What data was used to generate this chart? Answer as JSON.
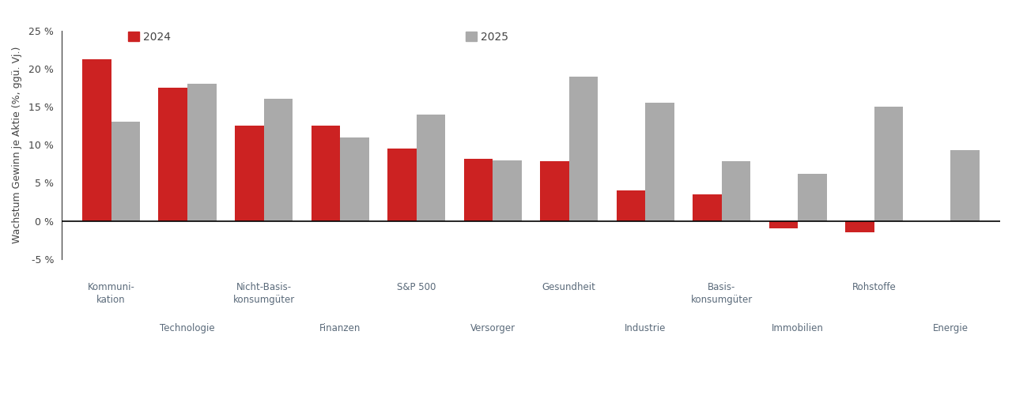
{
  "labels_top": [
    "Kommuni-\nkation",
    "",
    "Nicht-Basis-\nkonsumgüter",
    "",
    "S&P 500",
    "",
    "Gesundheit",
    "",
    "Basis-\nkonsumgüter",
    "",
    "Rohstoffe",
    ""
  ],
  "labels_bottom": [
    "",
    "Technologie",
    "",
    "Finanzen",
    "",
    "Versorger",
    "",
    "Industrie",
    "",
    "Immobilien",
    "",
    "Energie"
  ],
  "values_2024": [
    21.2,
    17.5,
    12.5,
    12.5,
    9.5,
    8.2,
    7.8,
    4.0,
    3.5,
    -1.0,
    -1.5,
    0.0
  ],
  "values_2025": [
    13.0,
    18.0,
    16.0,
    11.0,
    14.0,
    8.0,
    19.0,
    15.5,
    7.8,
    6.2,
    15.0,
    9.3
  ],
  "color_2024": "#cc2222",
  "color_2025": "#aaaaaa",
  "ylabel": "Wachstum Gewinn je Aktie (%, ggü. Vj.)",
  "ylim": [
    -5,
    25
  ],
  "yticks": [
    -5,
    0,
    5,
    10,
    15,
    20,
    25
  ],
  "ytick_labels": [
    "-5 %",
    "0 %",
    "5 %",
    "10 %",
    "15 %",
    "20 %",
    "25 %"
  ],
  "legend_2024": "2024",
  "legend_2025": "2025",
  "background_color": "#ffffff",
  "bar_width": 0.38
}
